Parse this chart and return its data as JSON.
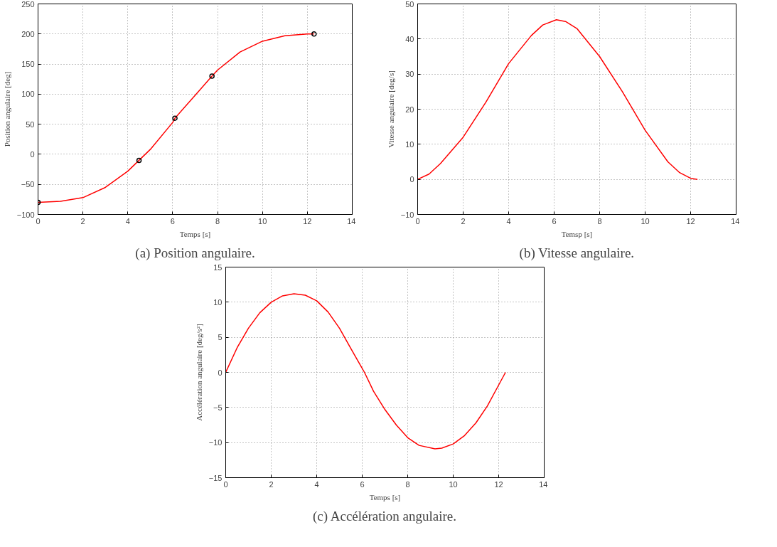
{
  "chart_data": [
    {
      "type": "line",
      "xlabel": "Temps [s]",
      "ylabel": "Position angulaire [deg]",
      "annotations": [
        "(a) Position angulaire."
      ],
      "xlim": [
        0,
        14
      ],
      "xticks": [
        0,
        2,
        4,
        6,
        8,
        10,
        12,
        14
      ],
      "ylim": [
        -100,
        250
      ],
      "yticks": [
        -100,
        -50,
        0,
        50,
        100,
        150,
        200,
        250
      ],
      "grid": true,
      "series": [
        {
          "type": "line",
          "color": "#ff0000",
          "marker": "none",
          "x": [
            0,
            1,
            2,
            3,
            4,
            4.5,
            5,
            6,
            6.1,
            7,
            7.75,
            8,
            9,
            10,
            11,
            12,
            12.3
          ],
          "values": [
            -80,
            -78,
            -72,
            -55,
            -28,
            -10,
            8,
            53,
            60,
            98,
            130,
            140,
            170,
            188,
            197,
            200,
            200
          ]
        },
        {
          "type": "scatter",
          "color": "#000000",
          "marker": "circle",
          "x": [
            0,
            4.5,
            6.1,
            7.75,
            12.3
          ],
          "values": [
            -80,
            -10,
            60,
            130,
            200
          ]
        }
      ]
    },
    {
      "type": "line",
      "xlabel": "Temsp [s]",
      "ylabel": "Vitesse angulaire [deg/s]",
      "annotations": [
        "(b) Vitesse angulaire."
      ],
      "xlim": [
        0,
        14
      ],
      "xticks": [
        0,
        2,
        4,
        6,
        8,
        10,
        12,
        14
      ],
      "ylim": [
        -10,
        50
      ],
      "yticks": [
        -10,
        0,
        10,
        20,
        30,
        40,
        50
      ],
      "grid": true,
      "series": [
        {
          "type": "line",
          "color": "#ff0000",
          "marker": "none",
          "x": [
            0,
            0.5,
            1,
            2,
            3,
            4,
            5,
            5.5,
            6.1,
            6.5,
            7,
            8,
            9,
            10,
            11,
            11.5,
            12,
            12.3
          ],
          "values": [
            0,
            1.5,
            4.5,
            12,
            22,
            33,
            41,
            44,
            45.5,
            45,
            43,
            35,
            25,
            14,
            5,
            2,
            0.3,
            0
          ]
        }
      ]
    },
    {
      "type": "line",
      "xlabel": "Temps [s]",
      "ylabel": "Accélération angulaire [deg/s²]",
      "annotations": [
        "(c) Accélération angulaire."
      ],
      "xlim": [
        0,
        14
      ],
      "xticks": [
        0,
        2,
        4,
        6,
        8,
        10,
        12,
        14
      ],
      "ylim": [
        -15,
        15
      ],
      "yticks": [
        -15,
        -10,
        -5,
        0,
        5,
        10,
        15
      ],
      "grid": true,
      "series": [
        {
          "type": "line",
          "color": "#ff0000",
          "marker": "none",
          "x": [
            0,
            0.5,
            1,
            1.5,
            2,
            2.5,
            3,
            3.5,
            4,
            4.5,
            5,
            5.5,
            6.1,
            6.5,
            7,
            7.5,
            8,
            8.5,
            9.2,
            9.5,
            10,
            10.5,
            11,
            11.5,
            12,
            12.3
          ],
          "values": [
            0,
            3.5,
            6.3,
            8.5,
            10,
            10.9,
            11.2,
            11,
            10.2,
            8.6,
            6.3,
            3.4,
            0,
            -2.7,
            -5.3,
            -7.5,
            -9.3,
            -10.4,
            -10.9,
            -10.8,
            -10.2,
            -9,
            -7.2,
            -4.8,
            -1.8,
            0
          ]
        }
      ]
    }
  ]
}
